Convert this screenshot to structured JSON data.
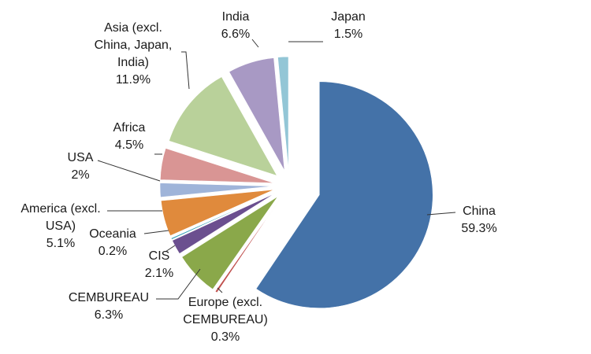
{
  "chart_data": {
    "type": "pie",
    "title": "",
    "legend": "none",
    "exploded": true,
    "start": "12 o'clock",
    "direction": "clockwise",
    "slices": [
      {
        "key": "china",
        "label_lines": [
          "China"
        ],
        "value_label": "59.3%",
        "value": 59.3,
        "color": "#4472a8"
      },
      {
        "key": "europe",
        "label_lines": [
          "Europe (excl.",
          "CEMBUREAU)"
        ],
        "value_label": "0.3%",
        "value": 0.3,
        "color": "#c0504d"
      },
      {
        "key": "cembureau",
        "label_lines": [
          "CEMBUREAU"
        ],
        "value_label": "6.3%",
        "value": 6.3,
        "color": "#8aa84a"
      },
      {
        "key": "cis",
        "label_lines": [
          "CIS"
        ],
        "value_label": "2.1%",
        "value": 2.1,
        "color": "#6b4f8f"
      },
      {
        "key": "oceania",
        "label_lines": [
          "Oceania"
        ],
        "value_label": "0.2%",
        "value": 0.2,
        "color": "#3aa0b8"
      },
      {
        "key": "america",
        "label_lines": [
          "America (excl.",
          "USA)"
        ],
        "value_label": "5.1%",
        "value": 5.1,
        "color": "#e08a3c"
      },
      {
        "key": "usa",
        "label_lines": [
          "USA"
        ],
        "value_label": "2%",
        "value": 2.0,
        "color": "#9fb4d9"
      },
      {
        "key": "africa",
        "label_lines": [
          "Africa"
        ],
        "value_label": "4.5%",
        "value": 4.5,
        "color": "#d99594"
      },
      {
        "key": "asia",
        "label_lines": [
          "Asia (excl.",
          "China, Japan,",
          "India)"
        ],
        "value_label": "11.9%",
        "value": 11.9,
        "color": "#b9d19a"
      },
      {
        "key": "india",
        "label_lines": [
          "India"
        ],
        "value_label": "6.6%",
        "value": 6.6,
        "color": "#a899c4"
      },
      {
        "key": "japan",
        "label_lines": [
          "Japan"
        ],
        "value_label": "1.5%",
        "value": 1.5,
        "color": "#93c6d6"
      }
    ]
  }
}
